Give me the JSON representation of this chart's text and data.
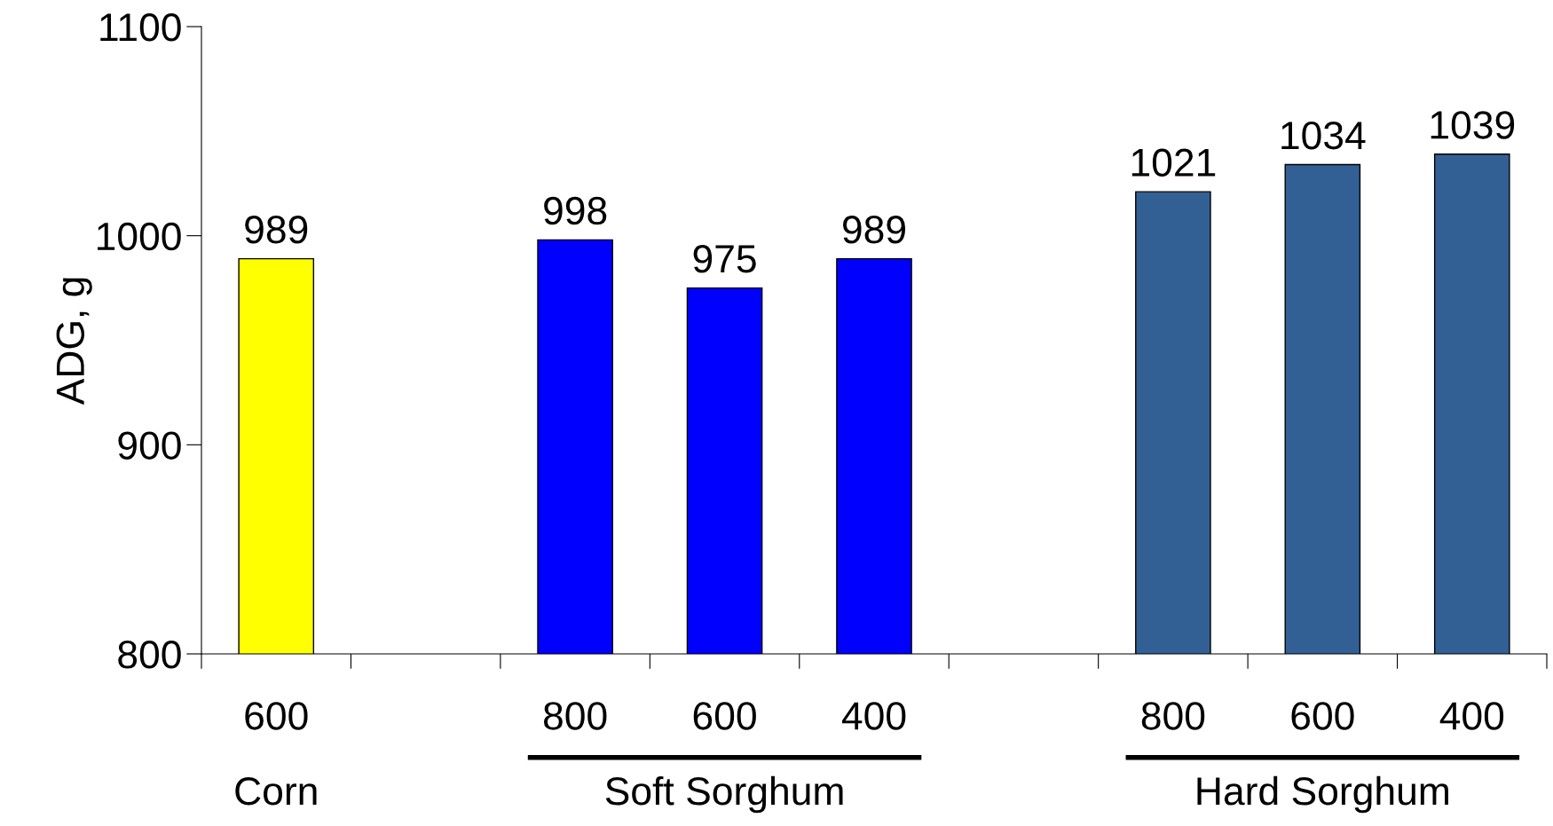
{
  "chart_data": {
    "type": "bar",
    "ylabel": "ADG, g",
    "categories": [
      "600",
      null,
      "800",
      "600",
      "400",
      null,
      "800",
      "600",
      "400"
    ],
    "values": [
      989,
      null,
      998,
      975,
      989,
      null,
      1021,
      1034,
      1039
    ],
    "colors": [
      "#ffff00",
      null,
      "#0000ff",
      "#0000ff",
      "#0000ff",
      null,
      "#336094",
      "#336094",
      "#336094"
    ],
    "ylim": [
      800,
      1100
    ],
    "yticks": [
      800,
      900,
      1000,
      1100
    ],
    "grid": false,
    "data_labels": true,
    "annotations": [
      "Corn",
      "Soft Sorghum",
      "Hard Sorghum"
    ]
  }
}
